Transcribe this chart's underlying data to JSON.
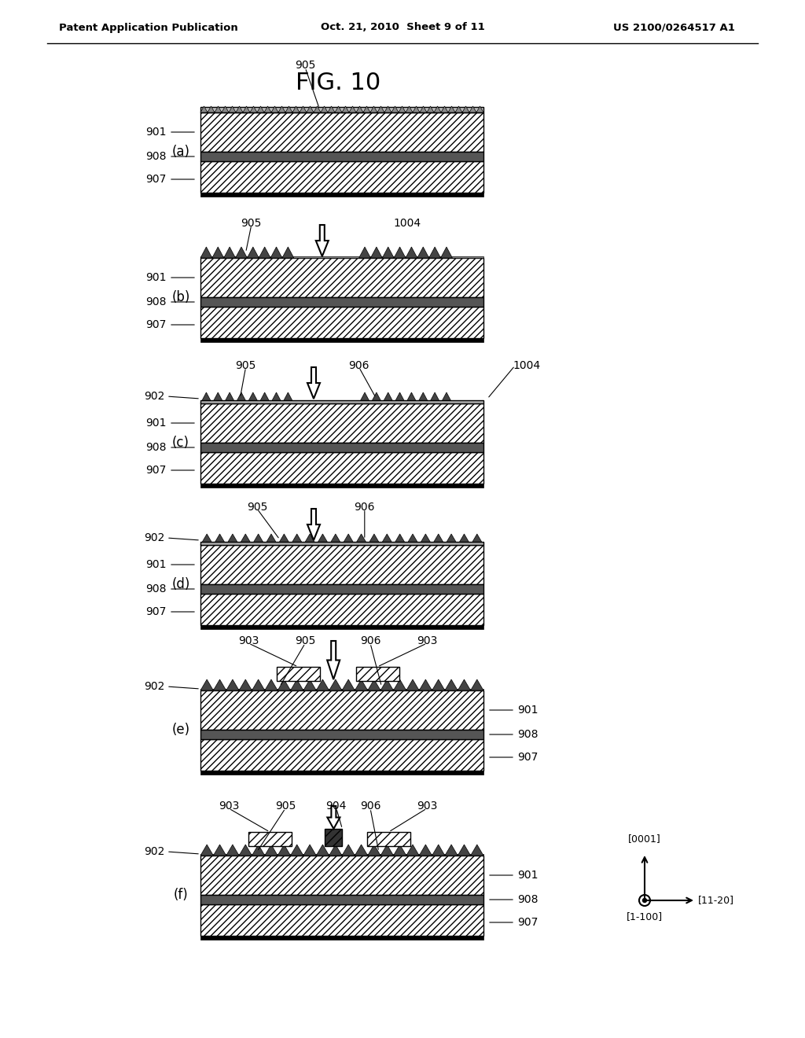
{
  "title": "FIG. 10",
  "header_left": "Patent Application Publication",
  "header_center": "Oct. 21, 2010  Sheet 9 of 11",
  "header_right": "US 2100/0264517 A1",
  "bg_color": "#ffffff"
}
